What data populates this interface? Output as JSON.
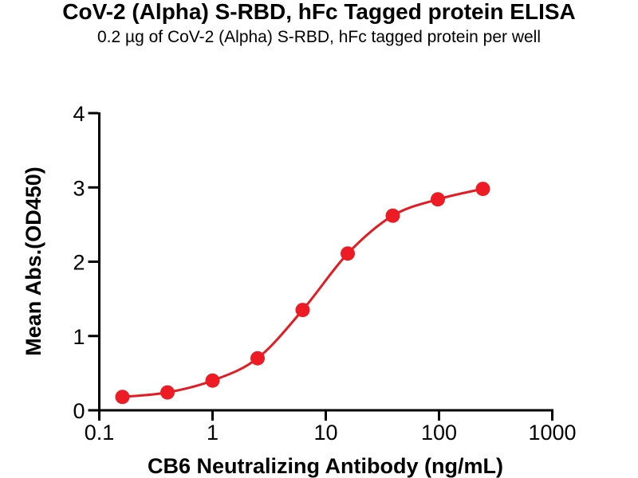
{
  "header": {
    "title": "CoV-2 (Alpha) S-RBD, hFc Tagged protein ELISA",
    "subtitle": "0.2 µg of CoV-2 (Alpha) S-RBD, hFc tagged protein per well"
  },
  "chart_data": {
    "type": "scatter",
    "curve_fit": "4PL sigmoidal dose-response, connecting line through points",
    "series": [
      {
        "name": "CB6 Neutralizing Antibody",
        "x": [
          0.16,
          0.4,
          1,
          2.5,
          6.25,
          15.63,
          39.06,
          97.66,
          244.14
        ],
        "y": [
          0.18,
          0.24,
          0.4,
          0.7,
          1.35,
          2.11,
          2.62,
          2.84,
          2.98
        ]
      }
    ],
    "title": "CoV-2 (Alpha) S-RBD, hFc Tagged protein ELISA",
    "subtitle": "0.2 µg of CoV-2 (Alpha) S-RBD, hFc tagged protein per well",
    "xlabel": "CB6 Neutralizing Antibody (ng/mL)",
    "ylabel": "Mean Abs.(OD450)",
    "xscale": "log10",
    "xlim": [
      0.1,
      1000
    ],
    "ylim": [
      0,
      4
    ],
    "x_ticks": [
      "0.1",
      "1",
      "10",
      "100",
      "1000"
    ],
    "y_ticks": [
      "0",
      "1",
      "2",
      "3",
      "4"
    ],
    "grid": false,
    "legend": "none",
    "marker_color": "#ed1c24",
    "line_color": "#e31b22",
    "axis_color": "#000000",
    "marker_radius": 9
  }
}
